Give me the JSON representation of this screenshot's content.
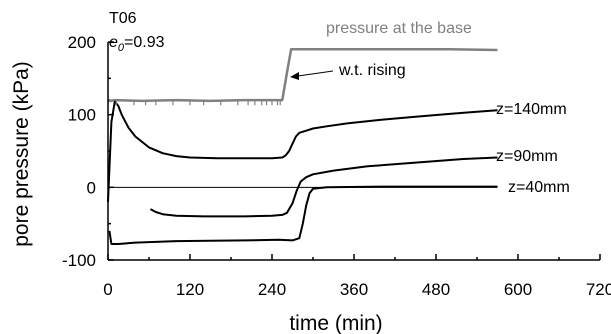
{
  "chart_data": {
    "type": "line",
    "title": "",
    "xlabel": "time (min)",
    "ylabel": "pore pressure (kPa)",
    "xlim": [
      0,
      720
    ],
    "ylim": [
      -100,
      200
    ],
    "xticks": [
      "0",
      "120",
      "240",
      "360",
      "480",
      "600",
      "720"
    ],
    "yticks": [
      "-100",
      "0",
      "100",
      "200"
    ],
    "grid": false,
    "legend": "none",
    "annotations": {
      "test_id": "T06",
      "e0_symbol": "e",
      "e0_subscript": "0",
      "e0_value": "=0.93",
      "arrow_label": "w.t. rising",
      "base_label": "pressure at the base",
      "label_z140": "z=140mm",
      "label_z90": "z=90mm",
      "label_z40": "z=40mm"
    },
    "colors": {
      "base": "#808080",
      "pore": "#000000"
    },
    "series": [
      {
        "name": "pressure at the base",
        "x": [
          0,
          2,
          4,
          10,
          50,
          100,
          150,
          200,
          240,
          255,
          262,
          268,
          300,
          400,
          500,
          570
        ],
        "y": [
          118,
          120,
          119,
          120,
          119,
          120,
          119,
          120,
          120,
          120,
          158,
          190,
          190,
          190,
          190,
          189
        ]
      },
      {
        "name": "z=140mm",
        "x": [
          0,
          5,
          10,
          15,
          20,
          30,
          40,
          60,
          80,
          100,
          120,
          160,
          200,
          240,
          255,
          260,
          265,
          270,
          275,
          280,
          290,
          300,
          320,
          350,
          400,
          450,
          500,
          540,
          570
        ],
        "y": [
          -20,
          90,
          118,
          112,
          100,
          82,
          70,
          55,
          47,
          43,
          41,
          40,
          40,
          40,
          41,
          44,
          50,
          60,
          70,
          75,
          78,
          81,
          84,
          88,
          93,
          97,
          101,
          104,
          106
        ]
      },
      {
        "name": "z=90mm",
        "x": [
          62,
          70,
          80,
          100,
          140,
          200,
          240,
          255,
          262,
          270,
          276,
          282,
          290,
          300,
          330,
          380,
          450,
          520,
          570
        ],
        "y": [
          -30,
          -34,
          -37,
          -39,
          -40,
          -40,
          -39,
          -38,
          -35,
          -22,
          -5,
          8,
          14,
          18,
          23,
          29,
          34,
          39,
          41
        ]
      },
      {
        "name": "z=40mm",
        "x": [
          2,
          5,
          15,
          40,
          100,
          200,
          250,
          270,
          280,
          285,
          290,
          295,
          300,
          320,
          400,
          480,
          570
        ],
        "y": [
          -60,
          -78,
          -78,
          -76,
          -74,
          -73,
          -72,
          -73,
          -70,
          -50,
          -25,
          -8,
          -2,
          0,
          1,
          1,
          1
        ]
      }
    ]
  }
}
